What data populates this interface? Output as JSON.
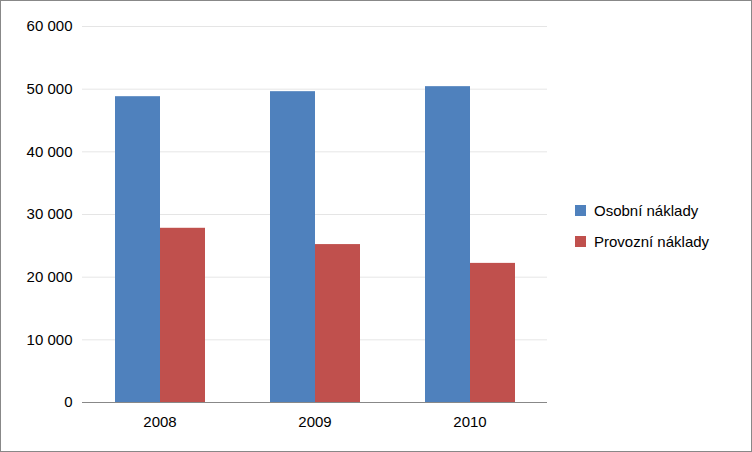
{
  "chart_data": {
    "type": "bar",
    "categories": [
      "2008",
      "2009",
      "2010"
    ],
    "series": [
      {
        "name": "Osobní náklady",
        "color": "#4f81bd",
        "values": [
          48800,
          49600,
          50400
        ]
      },
      {
        "name": "Provozní náklady",
        "color": "#c0504d",
        "values": [
          27800,
          25200,
          22200
        ]
      }
    ],
    "ylim": [
      0,
      60000
    ],
    "yticks": [
      0,
      {
        "value": 10000,
        "label": "10 000"
      },
      {
        "value": 20000,
        "label": "20 000"
      },
      {
        "value": 30000,
        "label": "30 000"
      },
      {
        "value": 40000,
        "label": "40 000"
      },
      {
        "value": 50000,
        "label": "50 000"
      },
      {
        "value": 60000,
        "label": "60 000"
      }
    ],
    "grid": true,
    "legend": "right"
  }
}
